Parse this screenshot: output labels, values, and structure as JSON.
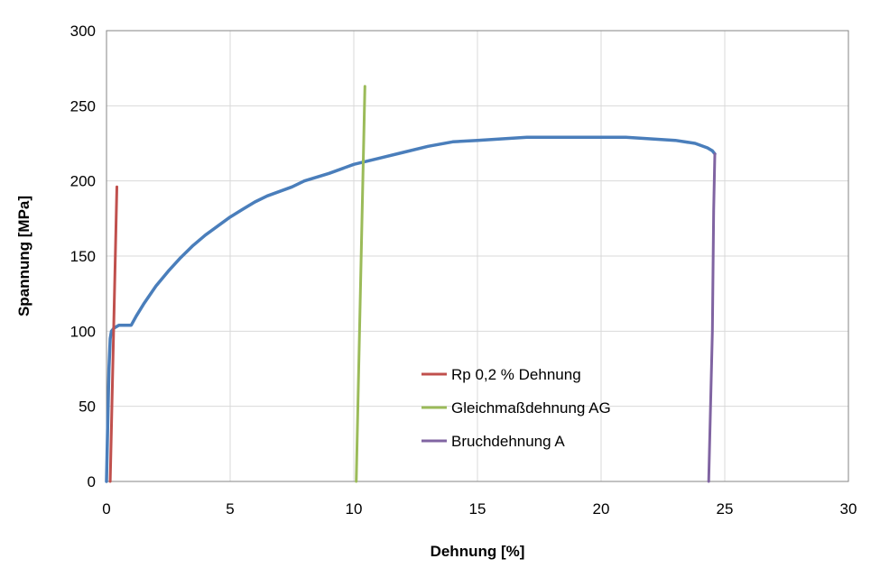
{
  "chart_data": {
    "type": "line",
    "xlabel": "Dehnung [%]",
    "ylabel": "Spannung [MPa]",
    "xlim": [
      0,
      30
    ],
    "ylim": [
      0,
      300
    ],
    "xticks": [
      "0",
      "5",
      "10",
      "15",
      "20",
      "25",
      "30"
    ],
    "yticks": [
      "0",
      "50",
      "100",
      "150",
      "200",
      "250",
      "300"
    ],
    "grid": true,
    "legend_position": "center",
    "series": [
      {
        "name": "",
        "color": "#4a7ebb",
        "x": [
          0,
          0.05,
          0.1,
          0.15,
          0.2,
          0.3,
          0.5,
          1.0,
          1.2,
          1.5,
          2.0,
          2.5,
          3.0,
          3.5,
          4.0,
          4.5,
          5.0,
          5.5,
          6.0,
          6.5,
          7.0,
          7.5,
          8.0,
          9.0,
          10.0,
          11.0,
          12.0,
          13.0,
          14.0,
          15.0,
          16.0,
          17.0,
          18.0,
          19.0,
          20.0,
          21.0,
          22.0,
          23.0,
          23.8,
          24.3,
          24.5,
          24.6
        ],
        "y": [
          0,
          40,
          75,
          95,
          100,
          102,
          104,
          104,
          110,
          118,
          130,
          140,
          149,
          157,
          164,
          170,
          176,
          181,
          186,
          190,
          193,
          196,
          200,
          205,
          211,
          215,
          219,
          223,
          226,
          227,
          228,
          229,
          229,
          229,
          229,
          229,
          228,
          227,
          225,
          222,
          220,
          218
        ]
      },
      {
        "name": "Rp 0,2 % Dehnung",
        "color": "#c0504d",
        "x": [
          0.15,
          0.42
        ],
        "y": [
          0,
          196
        ]
      },
      {
        "name": "Gleichmaßdehnung AG",
        "color": "#9bbb59",
        "x": [
          10.1,
          10.45
        ],
        "y": [
          0,
          263
        ]
      },
      {
        "name": "Bruchdehnung A",
        "color": "#8064a2",
        "x": [
          24.35,
          24.5,
          24.55,
          24.6
        ],
        "y": [
          0,
          100,
          180,
          218
        ]
      }
    ]
  }
}
